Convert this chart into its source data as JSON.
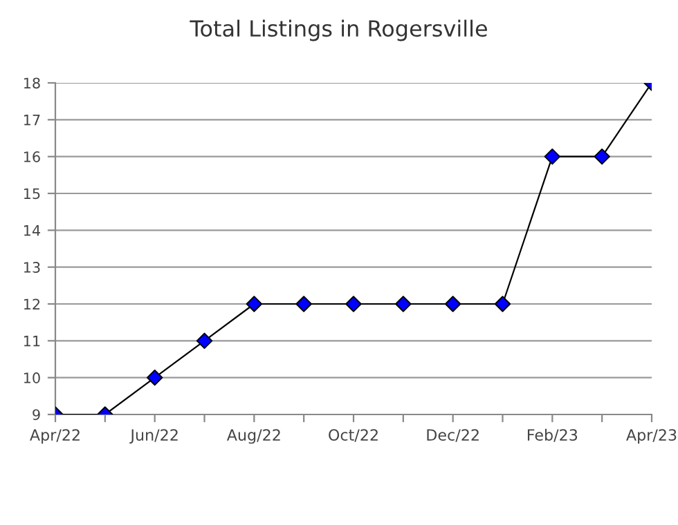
{
  "chart_data": {
    "type": "line",
    "title": "Total Listings in Rogersville",
    "categories": [
      "Apr/22",
      null,
      "Jun/22",
      null,
      "Aug/22",
      null,
      "Oct/22",
      null,
      "Dec/22",
      null,
      "Feb/23",
      null,
      "Apr/23"
    ],
    "series": [
      {
        "color": "#000000",
        "colors": [
          "#0000ff",
          "#0000ff",
          "#0000ff",
          "#0000ff",
          "#0000ff",
          "#0000ff",
          "#0000ff",
          "#0000ff",
          "#0000ff",
          "#0000ff",
          "#0000ff",
          "#0000ff",
          "#0000ff"
        ],
        "values": [
          9,
          9,
          10,
          11,
          12,
          12,
          12,
          12,
          12,
          12,
          16,
          16,
          18
        ]
      }
    ],
    "ylim": [
      9,
      18
    ],
    "yticks": [
      9,
      10,
      11,
      12,
      13,
      14,
      15,
      16,
      17,
      18
    ],
    "grid": "y",
    "marker": "diamond",
    "line_style": "solid"
  }
}
